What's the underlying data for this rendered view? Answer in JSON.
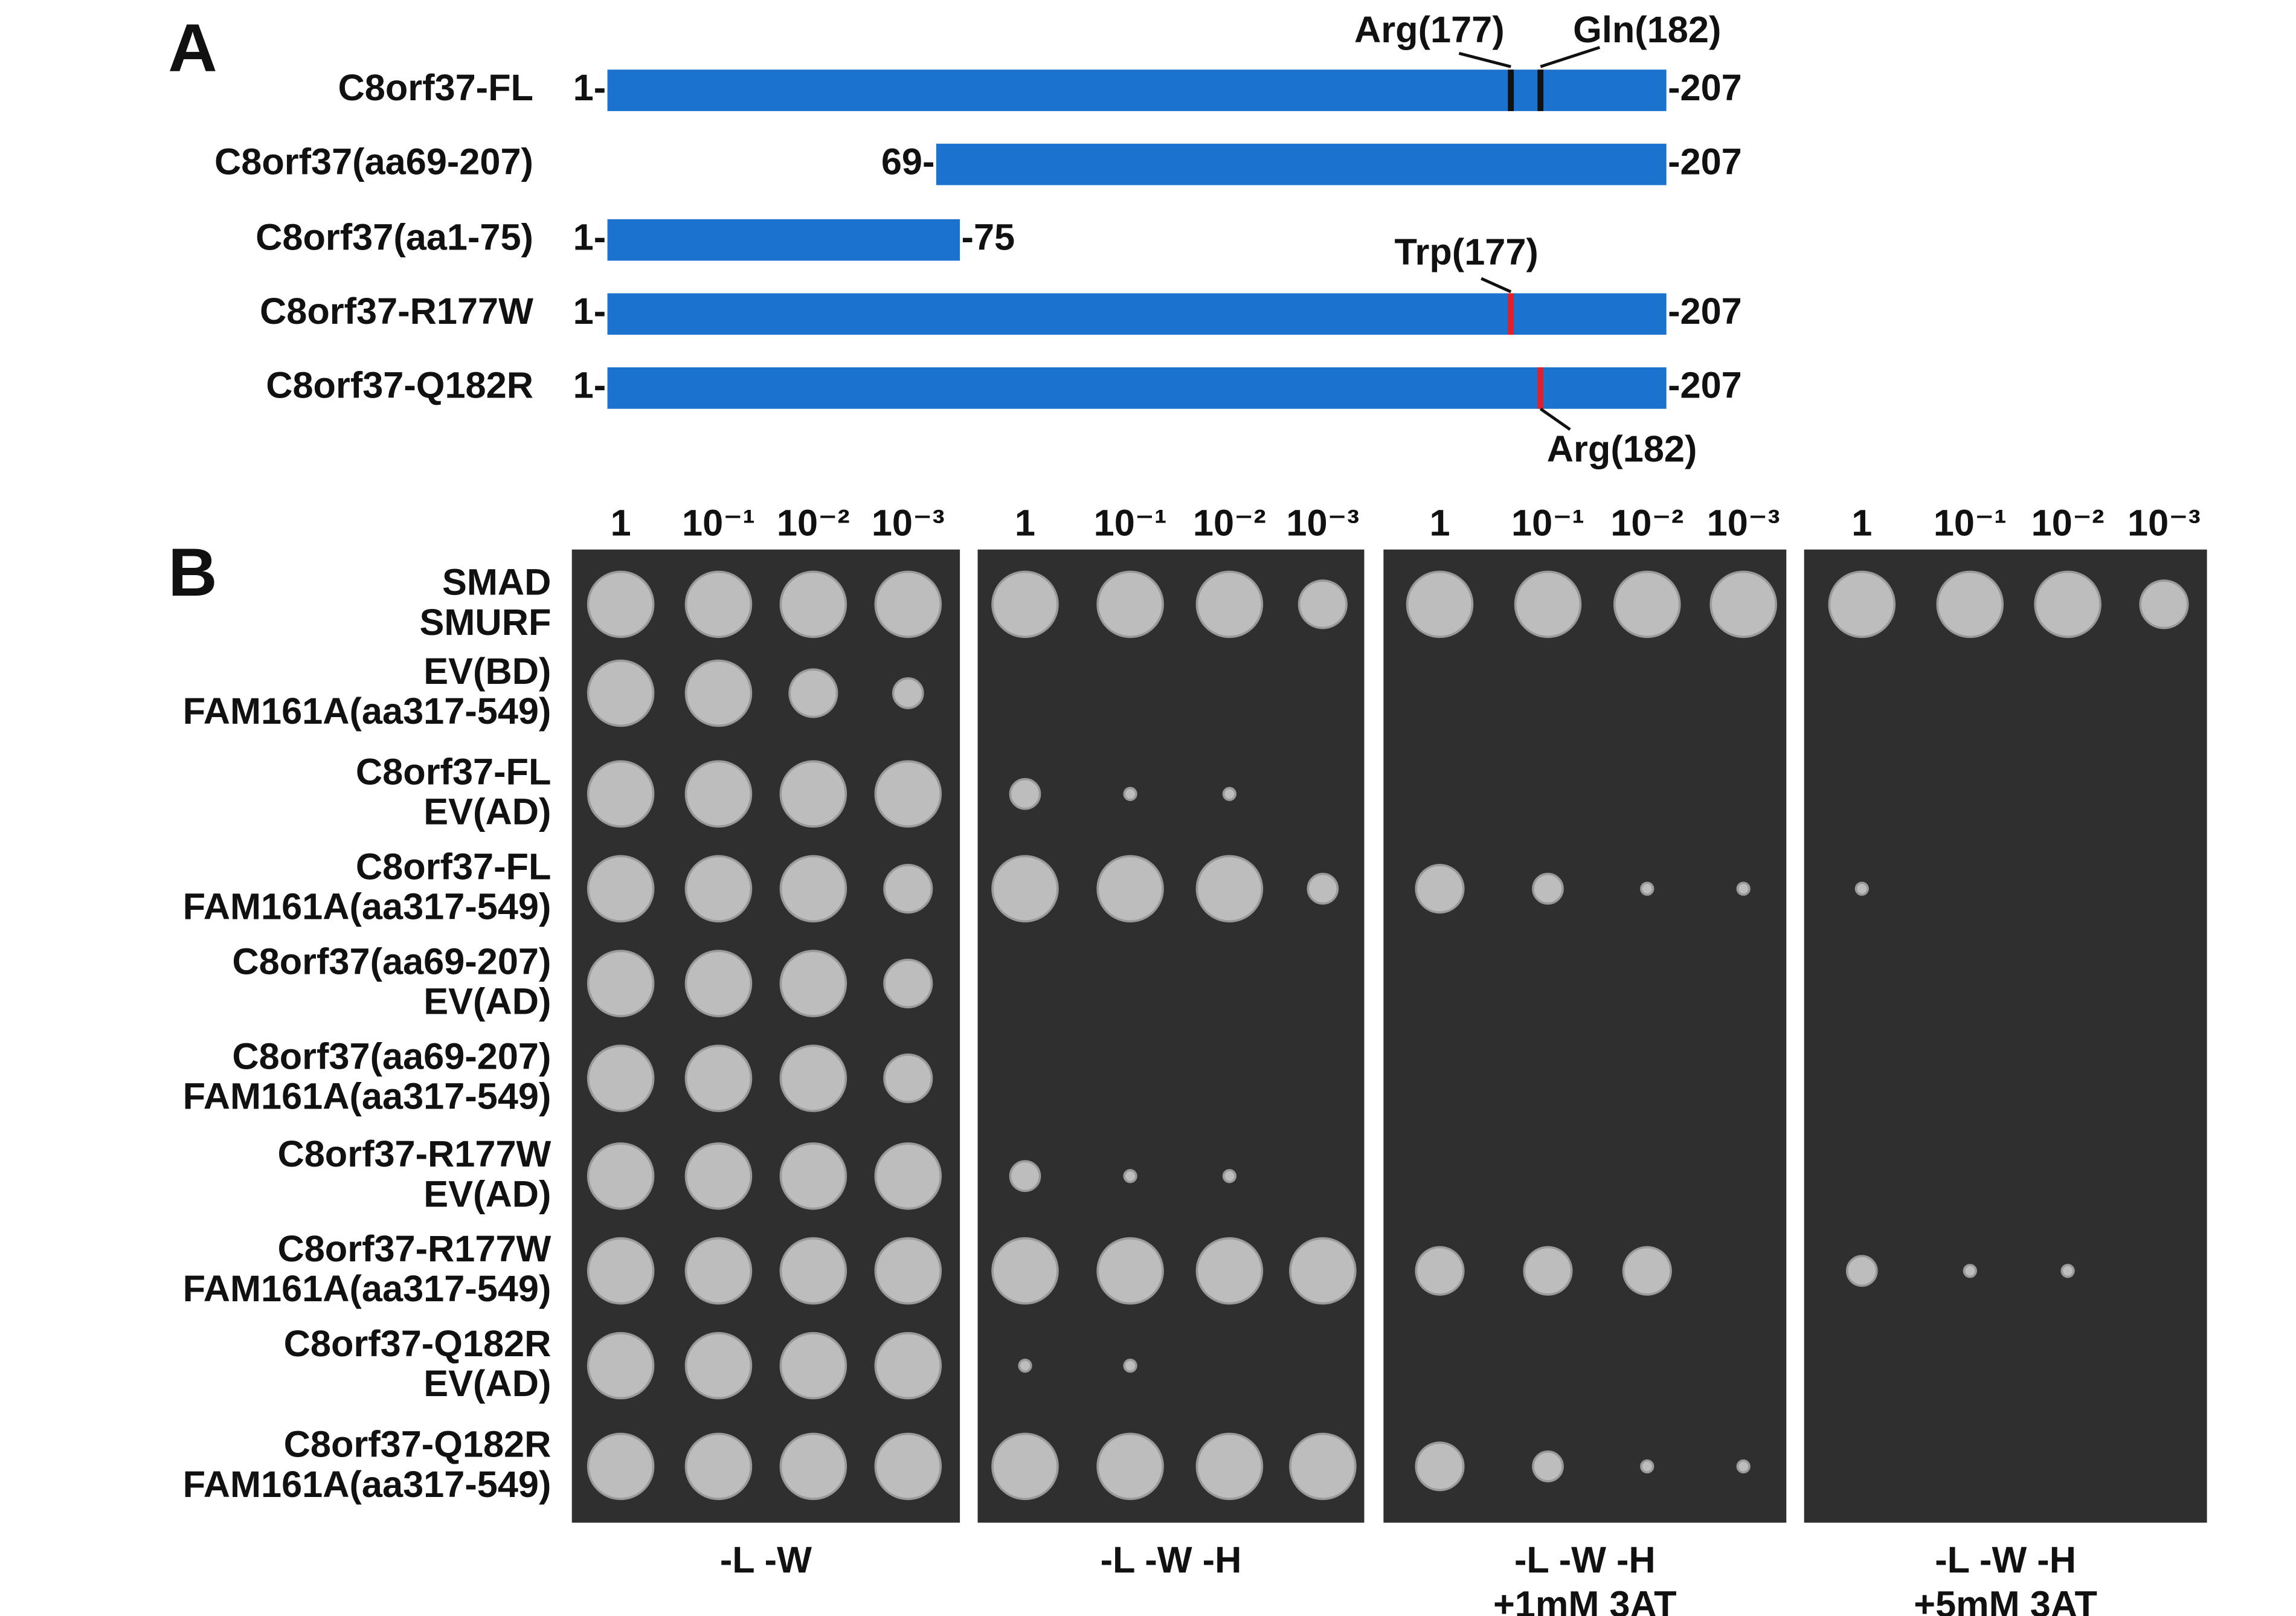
{
  "panel_a": {
    "letter": "A",
    "constructs": [
      {
        "name": "C8orf37-FL",
        "start": "1-",
        "end": "-207"
      },
      {
        "name": "C8orf37(aa69-207)",
        "start": "69-",
        "end": "-207"
      },
      {
        "name": "C8orf37(aa1-75)",
        "start": "1-",
        "end": "-75"
      },
      {
        "name": "C8orf37-R177W",
        "start": "1-",
        "end": "-207"
      },
      {
        "name": "C8orf37-Q182R",
        "start": "1-",
        "end": "-207"
      }
    ],
    "annotations": [
      "Arg(177)",
      "Gln(182)",
      "Trp(177)",
      "Arg(182)"
    ]
  },
  "panel_b": {
    "letter": "B",
    "dilutions": [
      "1",
      "10⁻¹",
      "10⁻²",
      "10⁻³"
    ],
    "rows": [
      [
        "SMAD",
        "SMURF"
      ],
      [
        "EV(BD)",
        "FAM161A(aa317-549)"
      ],
      [
        "C8orf37-FL",
        "EV(AD)"
      ],
      [
        "C8orf37-FL",
        "FAM161A(aa317-549)"
      ],
      [
        "C8orf37(aa69-207)",
        "EV(AD)"
      ],
      [
        "C8orf37(aa69-207)",
        "FAM161A(aa317-549)"
      ],
      [
        "C8orf37-R177W",
        "EV(AD)"
      ],
      [
        "C8orf37-R177W",
        "FAM161A(aa317-549)"
      ],
      [
        "C8orf37-Q182R",
        "EV(AD)"
      ],
      [
        "C8orf37-Q182R",
        "FAM161A(aa317-549)"
      ]
    ],
    "conditions": [
      [
        "-L -W"
      ],
      [
        "-L -W -H"
      ],
      [
        "-L -W -H",
        "+1mM 3AT"
      ],
      [
        "-L -W -H",
        "+5mM 3AT"
      ]
    ]
  }
}
